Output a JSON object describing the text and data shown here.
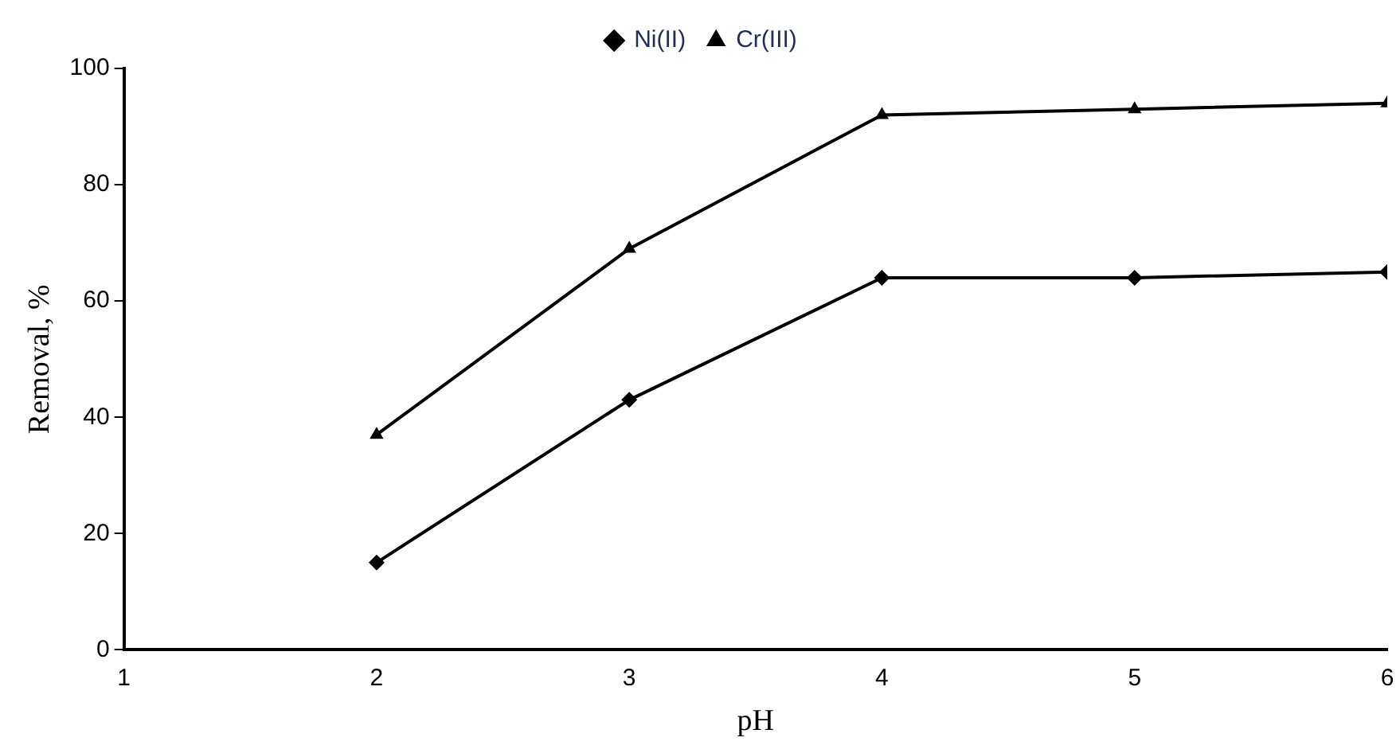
{
  "chart_data": {
    "type": "line",
    "xlabel": "pH",
    "ylabel": "Removal, %",
    "x": [
      2,
      3,
      4,
      5,
      6
    ],
    "series": [
      {
        "name": "Ni(II)",
        "color": "#000000",
        "marker": "diamond",
        "values": [
          15,
          43,
          64,
          64,
          65
        ]
      },
      {
        "name": "Cr(III)",
        "color": "#000000",
        "marker": "triangle",
        "values": [
          37,
          69,
          92,
          93,
          94
        ]
      }
    ],
    "xlim": [
      1,
      6
    ],
    "xticks": [
      1,
      2,
      3,
      4,
      5,
      6
    ],
    "ylim": [
      0,
      100
    ],
    "yticks": [
      0,
      20,
      40,
      60,
      80,
      100
    ],
    "grid": false,
    "legend": "top",
    "line_style": "solid"
  }
}
